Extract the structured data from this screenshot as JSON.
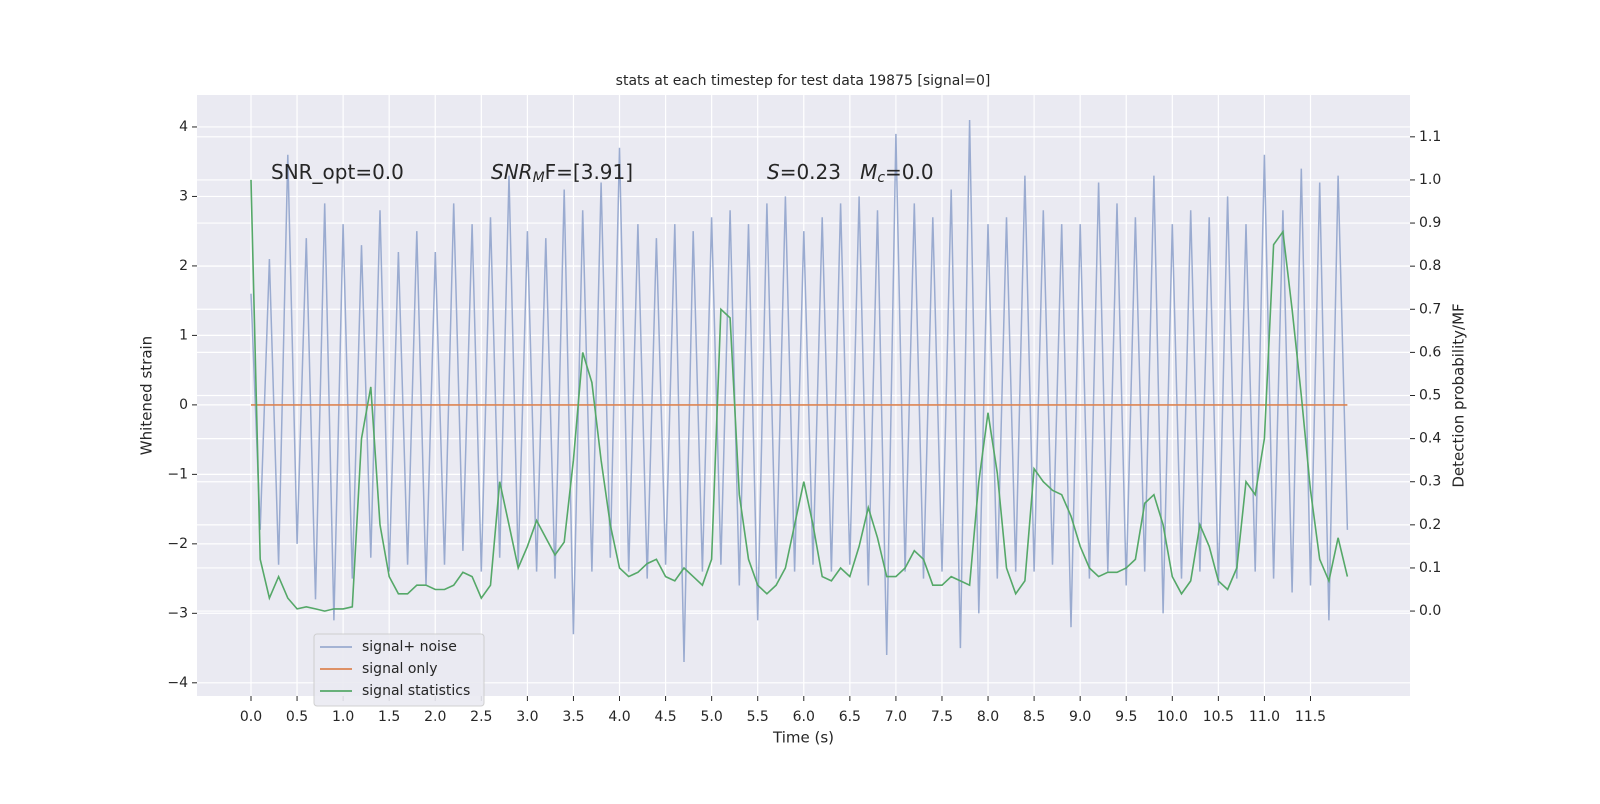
{
  "chart_data": {
    "type": "line",
    "title": "stats at each timestep for test data 19875 [signal=0]",
    "x_label": "Time (s)",
    "y_label": "Whitened strain",
    "y2_label": "Detection probability/MF",
    "annotations": [
      {
        "parts": [
          {
            "text": "SNR_opt=0.0"
          }
        ]
      },
      {
        "parts": [
          {
            "text": "SNR",
            "italic": true
          },
          {
            "text": "M",
            "italic": true,
            "sub": true
          },
          {
            "text": "F=[3.91]"
          }
        ]
      },
      {
        "parts": [
          {
            "text": "S",
            "italic": true
          },
          {
            "text": "=0.23   "
          },
          {
            "text": "M",
            "italic": true
          },
          {
            "text": "c",
            "italic": true,
            "sub": true
          },
          {
            "text": "=0.0"
          }
        ]
      }
    ],
    "x": [
      0.0,
      0.1,
      0.2,
      0.3,
      0.4,
      0.5,
      0.6,
      0.7,
      0.8,
      0.9,
      1.0,
      1.1,
      1.2,
      1.3,
      1.4,
      1.5,
      1.6,
      1.7,
      1.8,
      1.9,
      2.0,
      2.1,
      2.2,
      2.3,
      2.4,
      2.5,
      2.6,
      2.7,
      2.8,
      2.9,
      3.0,
      3.1,
      3.2,
      3.3,
      3.4,
      3.5,
      3.6,
      3.7,
      3.8,
      3.9,
      4.0,
      4.1,
      4.2,
      4.3,
      4.4,
      4.5,
      4.6,
      4.7,
      4.8,
      4.9,
      5.0,
      5.1,
      5.2,
      5.3,
      5.4,
      5.5,
      5.6,
      5.7,
      5.8,
      5.9,
      6.0,
      6.1,
      6.2,
      6.3,
      6.4,
      6.5,
      6.6,
      6.7,
      6.8,
      6.9,
      7.0,
      7.1,
      7.2,
      7.3,
      7.4,
      7.5,
      7.6,
      7.7,
      7.8,
      7.9,
      8.0,
      8.1,
      8.2,
      8.3,
      8.4,
      8.5,
      8.6,
      8.7,
      8.8,
      8.9,
      9.0,
      9.1,
      9.2,
      9.3,
      9.4,
      9.5,
      9.6,
      9.7,
      9.8,
      9.9,
      10.0,
      10.1,
      10.2,
      10.3,
      10.4,
      10.5,
      10.6,
      10.7,
      10.8,
      10.9,
      11.0,
      11.1,
      11.2,
      11.3,
      11.4,
      11.5,
      11.6,
      11.7,
      11.8,
      11.9
    ],
    "series": [
      {
        "name": "signal+ noise",
        "color": "#9aabd0",
        "values": [
          1.6,
          -1.8,
          2.1,
          -2.3,
          3.6,
          -2.0,
          2.4,
          -2.8,
          2.9,
          -3.1,
          2.6,
          -2.5,
          2.3,
          -2.2,
          2.8,
          -2.4,
          2.2,
          -2.3,
          2.5,
          -2.6,
          2.2,
          -2.3,
          2.9,
          -2.1,
          2.6,
          -2.4,
          2.7,
          -2.2,
          3.3,
          -2.3,
          2.5,
          -2.4,
          2.4,
          -2.5,
          3.1,
          -3.3,
          2.8,
          -2.4,
          3.2,
          -2.2,
          3.7,
          -2.4,
          2.6,
          -2.5,
          2.4,
          -2.3,
          2.6,
          -3.7,
          2.5,
          -2.4,
          2.7,
          -2.3,
          2.8,
          -2.6,
          2.6,
          -3.1,
          2.9,
          -2.5,
          3.0,
          -2.4,
          2.5,
          -2.3,
          2.7,
          -2.4,
          2.9,
          -2.3,
          3.0,
          -2.6,
          2.8,
          -3.6,
          3.9,
          -2.4,
          2.9,
          -2.5,
          2.7,
          -2.4,
          3.1,
          -3.5,
          4.1,
          -3.0,
          2.6,
          -2.5,
          2.7,
          -2.4,
          3.3,
          -2.4,
          2.8,
          -2.3,
          2.6,
          -3.2,
          2.6,
          -2.5,
          3.2,
          -2.4,
          2.9,
          -2.6,
          2.7,
          -2.4,
          3.3,
          -3.0,
          2.6,
          -2.5,
          2.8,
          -2.4,
          2.7,
          -2.6,
          3.0,
          -2.5,
          2.6,
          -2.4,
          3.6,
          -2.5,
          2.8,
          -2.7,
          3.4,
          -2.6,
          3.2,
          -3.1,
          3.3,
          -1.8
        ]
      },
      {
        "name": "signal only",
        "color": "#dd8452",
        "values": [
          0,
          0,
          0,
          0,
          0,
          0,
          0,
          0,
          0,
          0,
          0,
          0,
          0,
          0,
          0,
          0,
          0,
          0,
          0,
          0,
          0,
          0,
          0,
          0,
          0,
          0,
          0,
          0,
          0,
          0,
          0,
          0,
          0,
          0,
          0,
          0,
          0,
          0,
          0,
          0,
          0,
          0,
          0,
          0,
          0,
          0,
          0,
          0,
          0,
          0,
          0,
          0,
          0,
          0,
          0,
          0,
          0,
          0,
          0,
          0,
          0,
          0,
          0,
          0,
          0,
          0,
          0,
          0,
          0,
          0,
          0,
          0,
          0,
          0,
          0,
          0,
          0,
          0,
          0,
          0,
          0,
          0,
          0,
          0,
          0,
          0,
          0,
          0,
          0,
          0,
          0,
          0,
          0,
          0,
          0,
          0,
          0,
          0,
          0,
          0,
          0,
          0,
          0,
          0,
          0,
          0,
          0,
          0,
          0,
          0,
          0,
          0,
          0,
          0,
          0,
          0,
          0,
          0,
          0,
          0
        ]
      },
      {
        "name": "signal statistics",
        "color": "#55a868",
        "axis": "y2",
        "values": [
          1.0,
          0.12,
          0.03,
          0.08,
          0.03,
          0.005,
          0.01,
          0.005,
          0.0,
          0.005,
          0.005,
          0.01,
          0.4,
          0.52,
          0.2,
          0.08,
          0.04,
          0.04,
          0.06,
          0.06,
          0.05,
          0.05,
          0.06,
          0.09,
          0.08,
          0.03,
          0.06,
          0.3,
          0.2,
          0.1,
          0.15,
          0.21,
          0.17,
          0.13,
          0.16,
          0.35,
          0.6,
          0.53,
          0.35,
          0.2,
          0.1,
          0.08,
          0.09,
          0.11,
          0.12,
          0.08,
          0.07,
          0.1,
          0.08,
          0.06,
          0.12,
          0.7,
          0.68,
          0.27,
          0.12,
          0.06,
          0.04,
          0.06,
          0.1,
          0.2,
          0.3,
          0.2,
          0.08,
          0.07,
          0.1,
          0.08,
          0.15,
          0.24,
          0.17,
          0.08,
          0.08,
          0.1,
          0.14,
          0.12,
          0.06,
          0.06,
          0.08,
          0.07,
          0.06,
          0.3,
          0.46,
          0.32,
          0.1,
          0.04,
          0.07,
          0.33,
          0.3,
          0.28,
          0.27,
          0.22,
          0.15,
          0.1,
          0.08,
          0.09,
          0.09,
          0.1,
          0.12,
          0.25,
          0.27,
          0.2,
          0.08,
          0.04,
          0.07,
          0.2,
          0.15,
          0.07,
          0.05,
          0.1,
          0.3,
          0.27,
          0.4,
          0.85,
          0.88,
          0.7,
          0.5,
          0.28,
          0.12,
          0.07,
          0.17,
          0.08
        ]
      }
    ],
    "xlim": [
      -0.586,
      12.58
    ],
    "ylim": [
      -4.19,
      4.46
    ],
    "y2lim": [
      -0.197,
      1.197
    ],
    "xticks": [
      {
        "value": 0,
        "label": "0.0"
      },
      0.5,
      {
        "value": 1,
        "label": "1.0"
      },
      1.5,
      {
        "value": 2,
        "label": "2.0"
      },
      2.5,
      {
        "value": 3,
        "label": "3.0"
      },
      3.5,
      {
        "value": 4,
        "label": "4.0"
      },
      4.5,
      {
        "value": 5,
        "label": "5.0"
      },
      5.5,
      {
        "value": 6,
        "label": "6.0"
      },
      6.5,
      {
        "value": 7,
        "label": "7.0"
      },
      7.5,
      {
        "value": 8,
        "label": "8.0"
      },
      8.5,
      {
        "value": 9,
        "label": "9.0"
      },
      9.5,
      {
        "value": 10,
        "label": "10.0"
      },
      10.5,
      {
        "value": 11,
        "label": "11.0"
      },
      11.5
    ],
    "yticks": [
      {
        "value": -4,
        "label": "−4"
      },
      {
        "value": -3,
        "label": "−3"
      },
      {
        "value": -2,
        "label": "−2"
      },
      {
        "value": -1,
        "label": "−1"
      },
      0,
      1,
      2,
      3,
      4
    ],
    "y2ticks": [
      {
        "value": 0,
        "label": "0.0"
      },
      0.1,
      0.2,
      0.3,
      0.4,
      0.5,
      0.6,
      0.7,
      0.8,
      0.9,
      {
        "value": 1,
        "label": "1.0"
      },
      1.1
    ],
    "grid": true,
    "legend": "lower left",
    "background": "#eaeaf2"
  }
}
